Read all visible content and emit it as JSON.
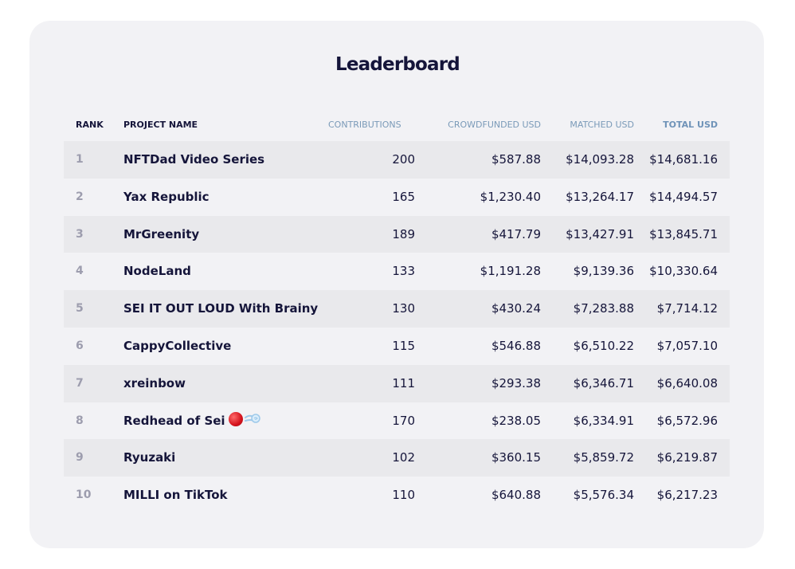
{
  "title": "Leaderboard",
  "columns": {
    "rank": "RANK",
    "project_name": "PROJECT NAME",
    "contributions": "CONTRIBUTIONS",
    "crowdfunded": "CROWDFUNDED USD",
    "matched": "MATCHED USD",
    "total": "TOTAL USD"
  },
  "rows": [
    {
      "rank": "1",
      "name": "NFTDad Video Series",
      "contributions": "200",
      "crowdfunded": "$587.88",
      "matched": "$14,093.28",
      "total": "$14,681.16"
    },
    {
      "rank": "2",
      "name": "Yax Republic",
      "contributions": "165",
      "crowdfunded": "$1,230.40",
      "matched": "$13,264.17",
      "total": "$14,494.57"
    },
    {
      "rank": "3",
      "name": "MrGreenity",
      "contributions": "189",
      "crowdfunded": "$417.79",
      "matched": "$13,427.91",
      "total": "$13,845.71"
    },
    {
      "rank": "4",
      "name": "NodeLand",
      "contributions": "133",
      "crowdfunded": "$1,191.28",
      "matched": "$9,139.36",
      "total": "$10,330.64"
    },
    {
      "rank": "5",
      "name": "SEI IT OUT LOUD With Brainy",
      "contributions": "130",
      "crowdfunded": "$430.24",
      "matched": "$7,283.88",
      "total": "$7,714.12"
    },
    {
      "rank": "6",
      "name": "CappyCollective",
      "contributions": "115",
      "crowdfunded": "$546.88",
      "matched": "$6,510.22",
      "total": "$7,057.10"
    },
    {
      "rank": "7",
      "name": "xreinbow",
      "contributions": "111",
      "crowdfunded": "$293.38",
      "matched": "$6,346.71",
      "total": "$6,640.08"
    },
    {
      "rank": "8",
      "name": "Redhead of Sei",
      "contributions": "170",
      "crowdfunded": "$238.05",
      "matched": "$6,334.91",
      "total": "$6,572.96",
      "icons": [
        "red-circle-icon",
        "dash-icon"
      ]
    },
    {
      "rank": "9",
      "name": "Ryuzaki",
      "contributions": "102",
      "crowdfunded": "$360.15",
      "matched": "$5,859.72",
      "total": "$6,219.87"
    },
    {
      "rank": "10",
      "name": "MILLI on TikTok",
      "contributions": "110",
      "crowdfunded": "$640.88",
      "matched": "$5,576.34",
      "total": "$6,217.23"
    }
  ],
  "colors": {
    "text_dark": "#15153a",
    "header_light": "#7a9ab8",
    "rank_gray": "#9d9dae",
    "row_shaded": "#e9e9ec",
    "card_bg": "#f2f2f5"
  }
}
